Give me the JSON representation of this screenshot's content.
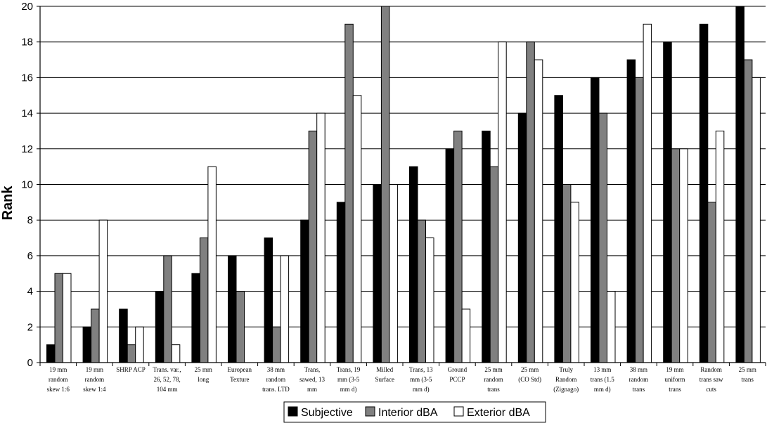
{
  "chart_data": {
    "type": "bar",
    "title": "",
    "xlabel": "",
    "ylabel": "Rank",
    "ylim": [
      0,
      20
    ],
    "yticks": [
      0,
      2,
      4,
      6,
      8,
      10,
      12,
      14,
      16,
      18,
      20
    ],
    "grid": "horizontal",
    "legend_position": "bottom",
    "categories": [
      [
        "19 mm",
        "random",
        "skew 1:6"
      ],
      [
        "19 mm",
        "random",
        "skew 1:4"
      ],
      [
        "SHRP ACP"
      ],
      [
        "Trans. var.,",
        "26, 52, 78,",
        "104 mm"
      ],
      [
        "25 mm",
        "long"
      ],
      [
        "European",
        "Texture"
      ],
      [
        "38 mm",
        "random",
        "trans. LTD"
      ],
      [
        "Trans,",
        "sawed, 13",
        "mm"
      ],
      [
        "Trans, 19",
        "mm (3-5",
        "mm d)"
      ],
      [
        "Milled",
        "Surface"
      ],
      [
        "Trans, 13",
        "mm (3-5",
        "mm d)"
      ],
      [
        "Ground",
        "PCCP"
      ],
      [
        "25 mm",
        "random",
        "trans"
      ],
      [
        "25 mm",
        "(CO Std)"
      ],
      [
        "Truly",
        "Random",
        "(Zignago)"
      ],
      [
        "13 mm",
        "trans (1.5",
        "mm d)"
      ],
      [
        "38 mm",
        "random",
        "trans"
      ],
      [
        "19 mm",
        "uniform",
        "trans"
      ],
      [
        "Random",
        "trans saw",
        "cuts"
      ],
      [
        "25 mm",
        "trans"
      ]
    ],
    "series": [
      {
        "name": "Subjective",
        "color": "#000000",
        "values": [
          1,
          2,
          3,
          4,
          5,
          6,
          7,
          8,
          9,
          10,
          11,
          12,
          13,
          14,
          15,
          16,
          17,
          18,
          19,
          20
        ]
      },
      {
        "name": "Interior dBA",
        "color": "#808080",
        "values": [
          5,
          3,
          1,
          6,
          7,
          4,
          2,
          13,
          19,
          20,
          8,
          13,
          11,
          18,
          10,
          14,
          16,
          12,
          9,
          17
        ]
      },
      {
        "name": "Exterior dBA",
        "color": "#ffffff",
        "values": [
          5,
          8,
          2,
          1,
          11,
          0,
          6,
          14,
          15,
          10,
          7,
          3,
          18,
          17,
          9,
          4,
          19,
          12,
          13,
          16
        ]
      }
    ]
  }
}
